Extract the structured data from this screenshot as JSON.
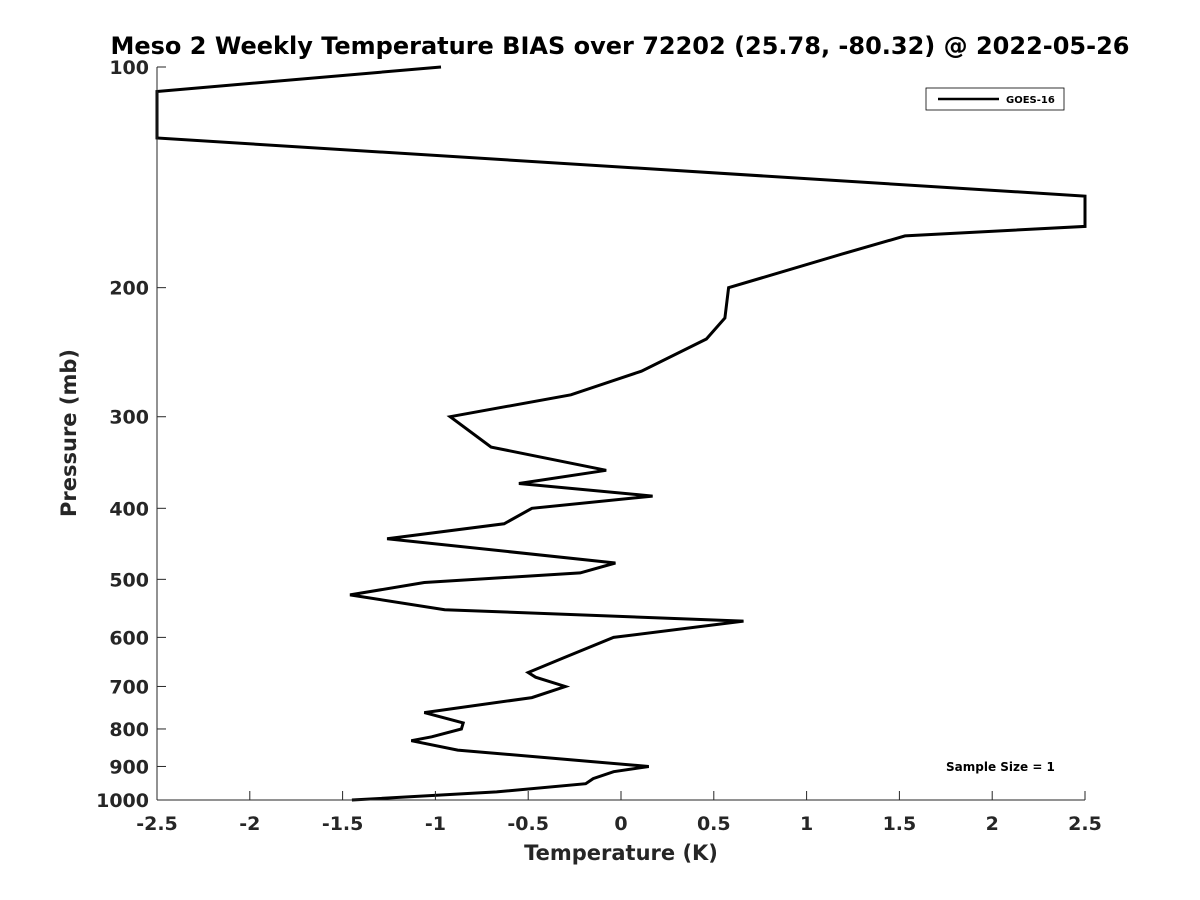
{
  "chart_data": {
    "type": "line",
    "title": "Meso 2 Weekly Temperature BIAS over 72202 (25.78, -80.32) @ 2022-05-26",
    "xlabel": "Temperature (K)",
    "ylabel": "Pressure (mb)",
    "xlim": [
      -2.5,
      2.5
    ],
    "ylim": [
      100,
      1000
    ],
    "y_scale": "log",
    "y_reversed": true,
    "grid": false,
    "x_ticks": [
      -2.5,
      -2,
      -1.5,
      -1,
      -0.5,
      0,
      0.5,
      1,
      1.5,
      2,
      2.5
    ],
    "x_tick_labels": [
      "-2.5",
      "-2",
      "-1.5",
      "-1",
      "-0.5",
      "0",
      "0.5",
      "1",
      "1.5",
      "2",
      "2.5"
    ],
    "y_ticks": [
      100,
      200,
      300,
      400,
      500,
      600,
      700,
      800,
      900,
      1000
    ],
    "y_tick_labels": [
      "100",
      "200",
      "300",
      "400",
      "500",
      "600",
      "700",
      "800",
      "900",
      "1000"
    ],
    "legend": {
      "position": "top-right",
      "entries": [
        "GOES-16"
      ]
    },
    "annotation": "Sample Size = 1",
    "series": [
      {
        "name": "GOES-16",
        "color": "#000000",
        "points": [
          [
            -0.97,
            100
          ],
          [
            -2.5,
            108
          ],
          [
            -2.5,
            125
          ],
          [
            2.5,
            150
          ],
          [
            2.5,
            150
          ],
          [
            2.5,
            165
          ],
          [
            1.53,
            170
          ],
          [
            1.19,
            180
          ],
          [
            0.58,
            200
          ],
          [
            0.56,
            220
          ],
          [
            0.46,
            235
          ],
          [
            0.11,
            260
          ],
          [
            -0.27,
            280
          ],
          [
            -0.92,
            300
          ],
          [
            -0.7,
            330
          ],
          [
            -0.08,
            355
          ],
          [
            -0.55,
            370
          ],
          [
            0.17,
            385
          ],
          [
            -0.48,
            400
          ],
          [
            -0.63,
            420
          ],
          [
            -1.26,
            440
          ],
          [
            -0.03,
            475
          ],
          [
            -0.22,
            490
          ],
          [
            -1.06,
            505
          ],
          [
            -1.46,
            525
          ],
          [
            -0.95,
            550
          ],
          [
            0.66,
            570
          ],
          [
            -0.04,
            600
          ],
          [
            -0.31,
            640
          ],
          [
            -0.5,
            670
          ],
          [
            -0.46,
            680
          ],
          [
            -0.3,
            700
          ],
          [
            -0.48,
            725
          ],
          [
            -1.06,
            760
          ],
          [
            -0.85,
            785
          ],
          [
            -0.86,
            800
          ],
          [
            -1.02,
            820
          ],
          [
            -1.13,
            830
          ],
          [
            -0.88,
            855
          ],
          [
            0.15,
            900
          ],
          [
            -0.04,
            915
          ],
          [
            -0.15,
            935
          ],
          [
            -0.19,
            950
          ],
          [
            -0.67,
            975
          ],
          [
            -1.45,
            1000
          ]
        ]
      }
    ]
  }
}
